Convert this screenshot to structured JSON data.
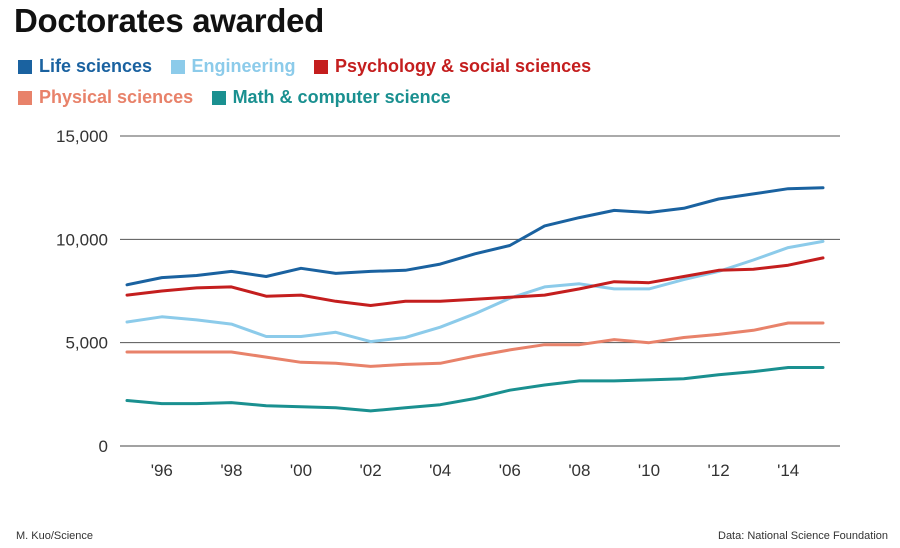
{
  "chart_data": {
    "type": "line",
    "title": "Doctorates awarded",
    "xlabel": "",
    "ylabel": "",
    "x": [
      1995,
      1996,
      1997,
      1998,
      1999,
      2000,
      2001,
      2002,
      2003,
      2004,
      2005,
      2006,
      2007,
      2008,
      2009,
      2010,
      2011,
      2012,
      2013,
      2014,
      2015
    ],
    "xlim": [
      1995,
      2015
    ],
    "ylim": [
      0,
      15000
    ],
    "yticks": [
      0,
      5000,
      10000,
      15000
    ],
    "ytick_labels": [
      "0",
      "5,000",
      "10,000",
      "15,000"
    ],
    "xticks": [
      1996,
      1998,
      2000,
      2002,
      2004,
      2006,
      2008,
      2010,
      2012,
      2014
    ],
    "xtick_labels": [
      "'96",
      "'98",
      "'00",
      "'02",
      "'04",
      "'06",
      "'08",
      "'10",
      "'12",
      "'14"
    ],
    "grid": true,
    "series": [
      {
        "name": "Life sciences",
        "color": "#1a62a0",
        "values": [
          7800,
          8150,
          8250,
          8450,
          8200,
          8600,
          8350,
          8450,
          8500,
          8800,
          9300,
          9700,
          10650,
          11050,
          11400,
          11300,
          11500,
          11950,
          12200,
          12450,
          12500
        ]
      },
      {
        "name": "Engineering",
        "color": "#8ccbea",
        "values": [
          6000,
          6250,
          6100,
          5900,
          5300,
          5300,
          5500,
          5050,
          5250,
          5750,
          6400,
          7150,
          7700,
          7850,
          7600,
          7600,
          8050,
          8450,
          9000,
          9600,
          9900
        ]
      },
      {
        "name": "Psychology & social sciences",
        "color": "#c41e1e",
        "values": [
          7300,
          7500,
          7650,
          7700,
          7250,
          7300,
          7000,
          6800,
          7000,
          7000,
          7100,
          7200,
          7300,
          7600,
          7950,
          7900,
          8200,
          8500,
          8550,
          8750,
          9100
        ]
      },
      {
        "name": "Physical sciences",
        "color": "#e8826a",
        "values": [
          4550,
          4550,
          4550,
          4550,
          4300,
          4050,
          4000,
          3850,
          3950,
          4000,
          4350,
          4650,
          4900,
          4900,
          5150,
          5000,
          5250,
          5400,
          5600,
          5950,
          5950
        ]
      },
      {
        "name": "Math & computer science",
        "color": "#1a9090",
        "values": [
          2200,
          2050,
          2050,
          2100,
          1950,
          1900,
          1850,
          1700,
          1850,
          2000,
          2300,
          2700,
          2950,
          3150,
          3150,
          3200,
          3250,
          3450,
          3600,
          3800,
          3800
        ]
      }
    ]
  },
  "credit": "M. Kuo/Science",
  "source": "Data: National Science Foundation"
}
